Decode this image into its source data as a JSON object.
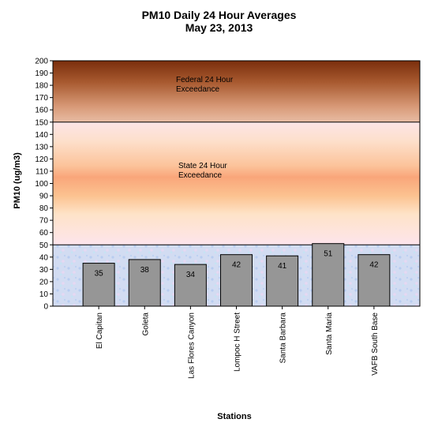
{
  "chart_data": {
    "type": "bar",
    "title": "PM10 Daily 24 Hour Averages",
    "subtitle": "May 23, 2013",
    "xlabel": "Stations",
    "ylabel": "PM10 (ug/m3)",
    "ylim": [
      0,
      200
    ],
    "ytick_step": 10,
    "categories": [
      "El Capitan",
      "Goleta",
      "Las Flores Canyon",
      "Lompoc H Street",
      "Santa Barbara",
      "Santa Maria",
      "VAFB South Base"
    ],
    "values": [
      35,
      38,
      34,
      42,
      41,
      51,
      42
    ],
    "bar_color": "#969696",
    "bands": [
      {
        "from": 0,
        "to": 50,
        "label": "",
        "color": "#c8d8f0"
      },
      {
        "from": 50,
        "to": 150,
        "label": "State 24 Hour\nExceedance",
        "color": "#f8b080"
      },
      {
        "from": 150,
        "to": 200,
        "label": "Federal 24 Hour\nExceedance",
        "color": "#8a3a12"
      }
    ],
    "grid": false,
    "legend": "none"
  }
}
